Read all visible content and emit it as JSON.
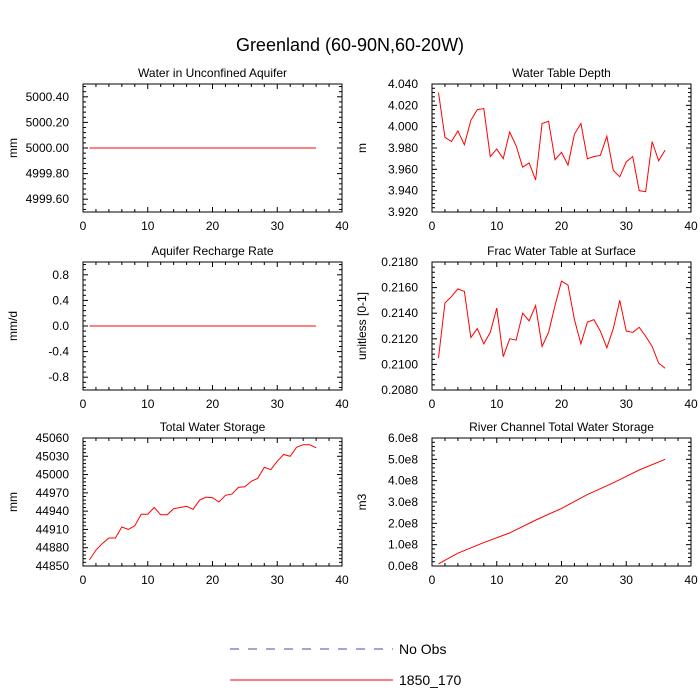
{
  "figure_title": "Greenland (60-90N,60-20W)",
  "legend": {
    "entries": [
      {
        "label": "No Obs",
        "color": "#4a4ab0",
        "style": "dashed"
      },
      {
        "label": "1850_170",
        "color": "#ff0000",
        "style": "solid"
      }
    ]
  },
  "chart_data": [
    {
      "type": "line",
      "title": "Water in Unconfined Aquifer",
      "xlabel": "",
      "ylabel": "mm",
      "xlim": [
        0,
        40
      ],
      "ylim": [
        4999.5,
        5000.5
      ],
      "xticks": [
        0,
        10,
        20,
        30,
        40
      ],
      "yticks": [
        4999.6,
        4999.8,
        5000.0,
        5000.2,
        5000.4
      ],
      "ytick_labels": [
        "4999.60",
        "4999.80",
        "5000.00",
        "5000.20",
        "5000.40"
      ],
      "grid": false,
      "series": [
        {
          "color": "#ff0000",
          "x": [
            1,
            36
          ],
          "y": [
            5000.0,
            5000.0
          ]
        }
      ]
    },
    {
      "type": "line",
      "title": "Water Table Depth",
      "xlabel": "",
      "ylabel": "m",
      "xlim": [
        0,
        40
      ],
      "ylim": [
        3.92,
        4.04
      ],
      "xticks": [
        0,
        10,
        20,
        30,
        40
      ],
      "yticks": [
        3.92,
        3.94,
        3.96,
        3.98,
        4.0,
        4.02,
        4.04
      ],
      "ytick_labels": [
        "3.920",
        "3.940",
        "3.960",
        "3.980",
        "4.000",
        "4.020",
        "4.040"
      ],
      "grid": false,
      "series": [
        {
          "color": "#ff0000",
          "x": [
            1,
            2,
            3,
            4,
            5,
            6,
            7,
            8,
            9,
            10,
            11,
            12,
            13,
            14,
            15,
            16,
            17,
            18,
            19,
            20,
            21,
            22,
            23,
            24,
            25,
            26,
            27,
            28,
            29,
            30,
            31,
            32,
            33,
            34,
            35,
            36
          ],
          "y": [
            4.032,
            3.99,
            3.986,
            3.996,
            3.983,
            4.006,
            4.016,
            4.017,
            3.972,
            3.979,
            3.97,
            3.995,
            3.982,
            3.962,
            3.966,
            3.95,
            4.003,
            4.005,
            3.969,
            3.976,
            3.964,
            3.993,
            4.003,
            3.97,
            3.972,
            3.973,
            3.991,
            3.959,
            3.953,
            3.967,
            3.972,
            3.94,
            3.939,
            3.986,
            3.968,
            3.978
          ]
        }
      ]
    },
    {
      "type": "line",
      "title": "Aquifer Recharge Rate",
      "xlabel": "",
      "ylabel": "mm/d",
      "xlim": [
        0,
        40
      ],
      "ylim": [
        -1.0,
        1.0
      ],
      "xticks": [
        0,
        10,
        20,
        30,
        40
      ],
      "yticks": [
        -0.8,
        -0.4,
        0.0,
        0.4,
        0.8
      ],
      "ytick_labels": [
        "-0.8",
        "-0.4",
        "0.0",
        "0.4",
        "0.8"
      ],
      "grid": false,
      "series": [
        {
          "color": "#ff0000",
          "x": [
            1,
            36
          ],
          "y": [
            0.0,
            0.0
          ]
        }
      ]
    },
    {
      "type": "line",
      "title": "Frac Water Table at Surface",
      "xlabel": "",
      "ylabel": "unitless [0-1]",
      "xlim": [
        0,
        40
      ],
      "ylim": [
        0.208,
        0.218
      ],
      "xticks": [
        0,
        10,
        20,
        30,
        40
      ],
      "yticks": [
        0.208,
        0.21,
        0.212,
        0.214,
        0.216,
        0.218
      ],
      "ytick_labels": [
        "0.2080",
        "0.2100",
        "0.2120",
        "0.2140",
        "0.2160",
        "0.2180"
      ],
      "grid": false,
      "series": [
        {
          "color": "#ff0000",
          "x": [
            1,
            2,
            3,
            4,
            5,
            6,
            7,
            8,
            9,
            10,
            11,
            12,
            13,
            14,
            15,
            16,
            17,
            18,
            19,
            20,
            21,
            22,
            23,
            24,
            25,
            26,
            27,
            28,
            29,
            30,
            31,
            32,
            33,
            34,
            35,
            36
          ],
          "y": [
            0.2105,
            0.2148,
            0.2153,
            0.2159,
            0.2157,
            0.2121,
            0.2128,
            0.2116,
            0.2125,
            0.2144,
            0.2106,
            0.212,
            0.2119,
            0.214,
            0.2134,
            0.2146,
            0.2114,
            0.2125,
            0.2146,
            0.2165,
            0.2162,
            0.2135,
            0.2116,
            0.2133,
            0.2135,
            0.2126,
            0.2113,
            0.2128,
            0.215,
            0.2126,
            0.2125,
            0.2129,
            0.2122,
            0.2114,
            0.2101,
            0.2097
          ]
        }
      ]
    },
    {
      "type": "line",
      "title": "Total Water Storage",
      "xlabel": "",
      "ylabel": "mm",
      "xlim": [
        0,
        40
      ],
      "ylim": [
        44850,
        45060
      ],
      "xticks": [
        0,
        10,
        20,
        30,
        40
      ],
      "yticks": [
        44850,
        44880,
        44910,
        44940,
        44970,
        45000,
        45030,
        45060
      ],
      "ytick_labels": [
        "44850",
        "44880",
        "44910",
        "44940",
        "44970",
        "45000",
        "45030",
        "45060"
      ],
      "grid": false,
      "series": [
        {
          "color": "#ff0000",
          "x": [
            1,
            2,
            3,
            4,
            5,
            6,
            7,
            8,
            9,
            10,
            11,
            12,
            13,
            14,
            15,
            16,
            17,
            18,
            19,
            20,
            21,
            22,
            23,
            24,
            25,
            26,
            27,
            28,
            29,
            30,
            31,
            32,
            33,
            34,
            35,
            36
          ],
          "y": [
            44860,
            44876,
            44887,
            44896,
            44896,
            44914,
            44910,
            44916,
            44935,
            44935,
            44946,
            44934,
            44934,
            44944,
            44946,
            44948,
            44943,
            44958,
            44963,
            44962,
            44955,
            44966,
            44968,
            44979,
            44980,
            44989,
            44994,
            45012,
            45008,
            45022,
            45033,
            45030,
            45045,
            45049,
            45049,
            45044
          ]
        }
      ]
    },
    {
      "type": "line",
      "title": "River Channel Total Water Storage",
      "xlabel": "",
      "ylabel": "m3",
      "xlim": [
        0,
        40
      ],
      "ylim": [
        0,
        600000000
      ],
      "xticks": [
        0,
        10,
        20,
        30,
        40
      ],
      "yticks": [
        0,
        100000000,
        200000000,
        300000000,
        400000000,
        500000000,
        600000000
      ],
      "ytick_labels": [
        "0.0e8",
        "1.0e8",
        "2.0e8",
        "3.0e8",
        "4.0e8",
        "5.0e8",
        "6.0e8"
      ],
      "grid": false,
      "series": [
        {
          "color": "#ff0000",
          "x": [
            1,
            4,
            8,
            12,
            16,
            20,
            24,
            28,
            32,
            36
          ],
          "y": [
            10000000,
            60000000,
            110000000,
            155000000,
            215000000,
            270000000,
            335000000,
            390000000,
            450000000,
            500000000
          ]
        }
      ]
    }
  ]
}
